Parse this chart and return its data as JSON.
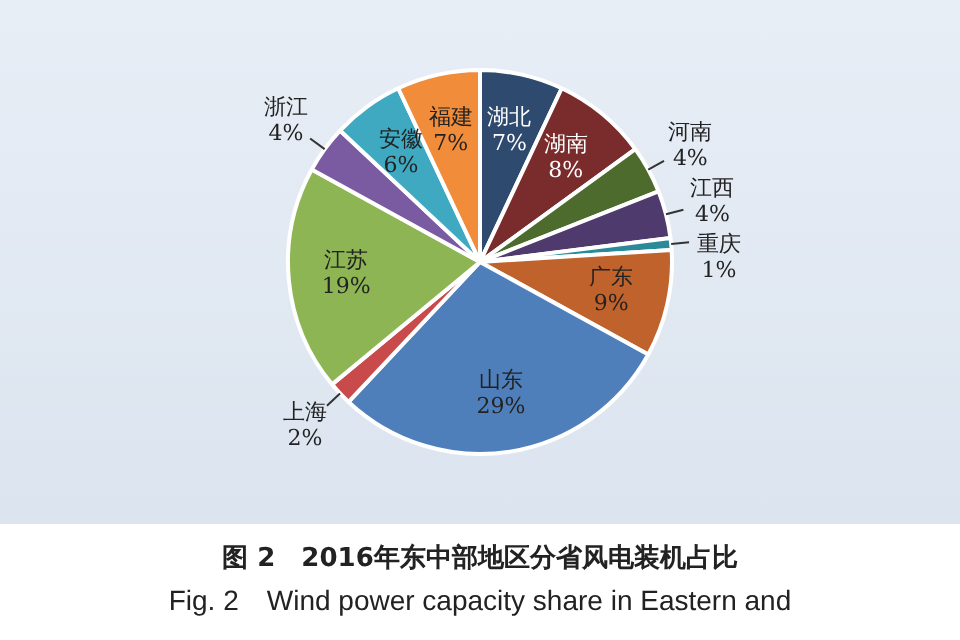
{
  "chart_data": {
    "type": "pie",
    "title": "图 2　2016年东中部地区分省风电装机占比",
    "subtitle": "Fig. 2　Wind power capacity share in Eastern and",
    "categories": [
      "湖北",
      "湖南",
      "河南",
      "江西",
      "重庆",
      "广东",
      "山东",
      "上海",
      "江苏",
      "浙江",
      "安徽",
      "福建"
    ],
    "values": [
      7,
      8,
      4,
      4,
      1,
      9,
      29,
      2,
      19,
      4,
      6,
      7
    ],
    "value_labels": [
      "7%",
      "8%",
      "4%",
      "4%",
      "1%",
      "9%",
      "29%",
      "2%",
      "19%",
      "4%",
      "6%",
      "7%"
    ],
    "colors": [
      "#2e4a6e",
      "#7a2b2b",
      "#4e6b2e",
      "#4f3a6e",
      "#2a8a9a",
      "#c0622b",
      "#4f7fba",
      "#c94a4a",
      "#8db553",
      "#7a5aa0",
      "#3fa9c2",
      "#f08c3a"
    ],
    "legend": false
  }
}
